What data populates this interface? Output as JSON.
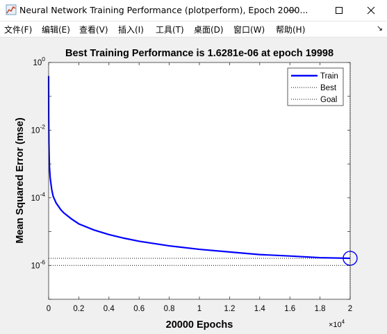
{
  "window": {
    "title": "Neural Network Training Performance (plotperform), Epoch 2000...",
    "icon": "matlab-figure-icon",
    "controls": [
      "minimize",
      "maximize",
      "close"
    ]
  },
  "menu": {
    "items": [
      {
        "label": "文件(F)"
      },
      {
        "label": "编辑(E)"
      },
      {
        "label": "查看(V)"
      },
      {
        "label": "插入(I)"
      },
      {
        "label": "工具(T)"
      },
      {
        "label": "桌面(D)"
      },
      {
        "label": "窗口(W)"
      },
      {
        "label": "帮助(H)"
      }
    ],
    "overflow_icon": "toolbar-toggle-arrow"
  },
  "chart_data": {
    "type": "line",
    "title": "Best Training Performance is 1.6281e-06 at epoch 19998",
    "xlabel": "20000 Epochs",
    "ylabel": "Mean Squared Error  (mse)",
    "x_multiplier": "×10",
    "x_multiplier_exp": "4",
    "xlim": [
      0,
      20000
    ],
    "ylim_log10": [
      -7,
      0
    ],
    "y_scale": "log",
    "x_ticks": [
      {
        "value": 0,
        "label": "0"
      },
      {
        "value": 2000,
        "label": "0.2"
      },
      {
        "value": 4000,
        "label": "0.4"
      },
      {
        "value": 6000,
        "label": "0.6"
      },
      {
        "value": 8000,
        "label": "0.8"
      },
      {
        "value": 10000,
        "label": "1"
      },
      {
        "value": 12000,
        "label": "1.2"
      },
      {
        "value": 14000,
        "label": "1.4"
      },
      {
        "value": 16000,
        "label": "1.6"
      },
      {
        "value": 18000,
        "label": "1.8"
      },
      {
        "value": 20000,
        "label": "2"
      }
    ],
    "y_ticks": [
      {
        "exp": 0,
        "base": "10",
        "sup": "0"
      },
      {
        "exp": -2,
        "base": "10",
        "sup": "-2"
      },
      {
        "exp": -4,
        "base": "10",
        "sup": "-4"
      },
      {
        "exp": -6,
        "base": "10",
        "sup": "-6"
      }
    ],
    "legend": {
      "placement": "top-right",
      "entries": [
        {
          "label": "Train",
          "style": "solid"
        },
        {
          "label": "Best",
          "style": "dotted"
        },
        {
          "label": "Goal",
          "style": "dotted"
        }
      ]
    },
    "series": [
      {
        "name": "Train",
        "color": "#0000ff",
        "x": [
          0,
          5,
          20,
          50,
          100,
          200,
          300,
          500,
          800,
          1000,
          1500,
          2000,
          3000,
          4000,
          5000,
          6000,
          8000,
          10000,
          12000,
          14000,
          16000,
          18000,
          19998
        ],
        "y": [
          0.4,
          0.03,
          0.004,
          0.0009,
          0.0004,
          0.00018,
          0.00011,
          7e-05,
          4.5e-05,
          3.6e-05,
          2.4e-05,
          1.7e-05,
          1.12e-05,
          8.2e-06,
          6.4e-06,
          5.2e-06,
          3.8e-06,
          3e-06,
          2.5e-06,
          2.1e-06,
          1.9e-06,
          1.7e-06,
          1.6281e-06
        ]
      }
    ],
    "best": {
      "epoch": 19998,
      "value": 1.6281e-06,
      "color": "#000000"
    },
    "goal": {
      "value": 1e-06,
      "color": "#000000"
    },
    "colors": {
      "train": "#0000ff",
      "axes_bg": "#ffffff",
      "figure_bg": "#f0f0f0",
      "marker": "#0000ff"
    }
  }
}
